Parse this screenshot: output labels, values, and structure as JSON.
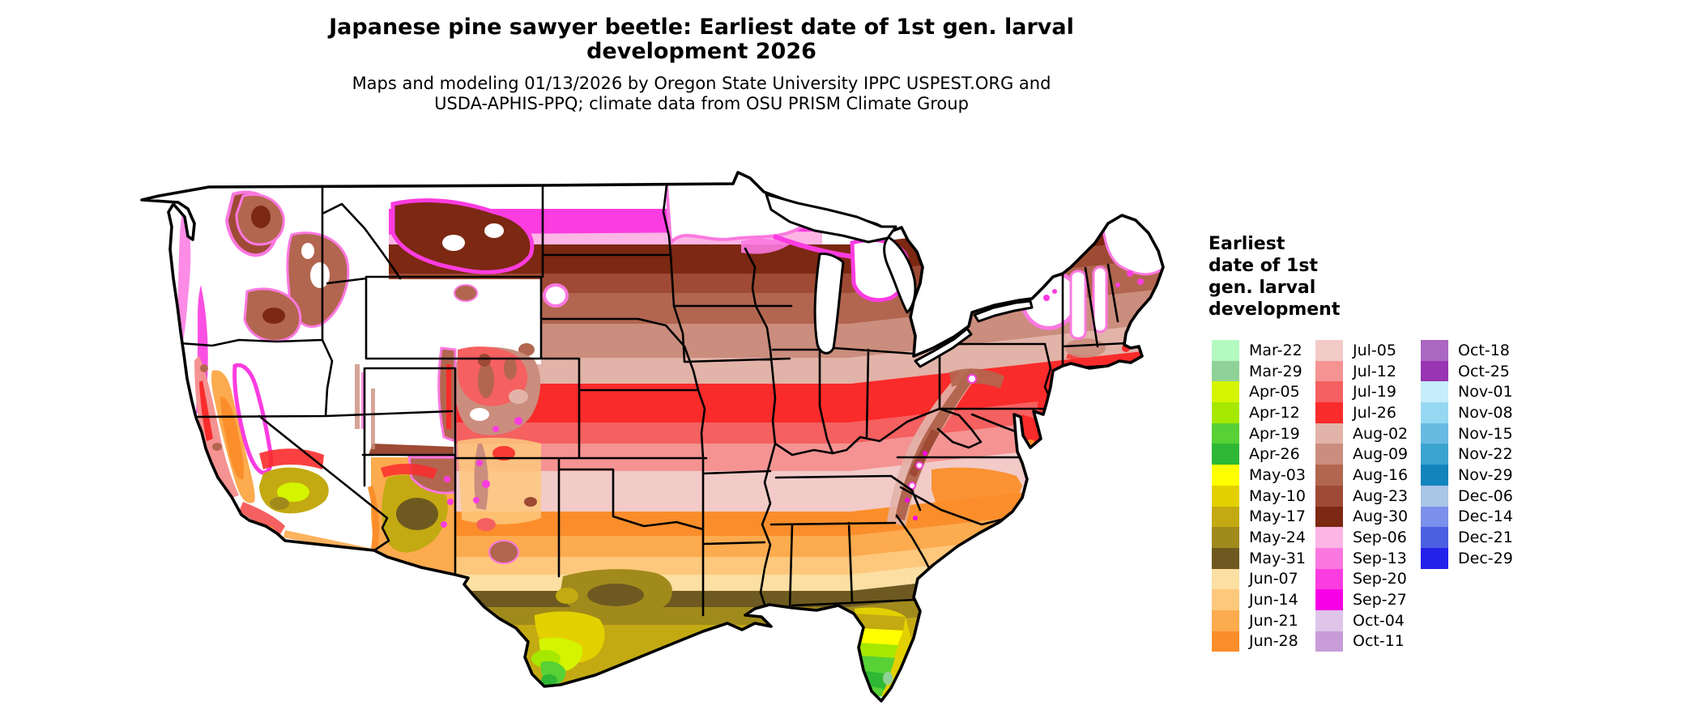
{
  "header": {
    "title_line1": "Japanese pine sawyer beetle: Earliest date of 1st gen. larval",
    "title_line2": "development 2026",
    "subtitle_line1": "Maps and modeling 01/13/2026 by Oregon State University IPPC USPEST.ORG and",
    "subtitle_line2": "USDA-APHIS-PPQ; climate data from OSU PRISM Climate Group"
  },
  "legend": {
    "title_lines": [
      "Earliest",
      "date of 1st",
      "gen. larval",
      "development"
    ],
    "columns": [
      [
        {
          "label": "Mar-22",
          "color": "#b3fac1"
        },
        {
          "label": "Mar-29",
          "color": "#8fd197"
        },
        {
          "label": "Apr-05",
          "color": "#d4f400"
        },
        {
          "label": "Apr-12",
          "color": "#a6e800"
        },
        {
          "label": "Apr-19",
          "color": "#57d135"
        },
        {
          "label": "Apr-26",
          "color": "#2eb835"
        },
        {
          "label": "May-03",
          "color": "#ffff00"
        },
        {
          "label": "May-10",
          "color": "#e3d000"
        },
        {
          "label": "May-17",
          "color": "#c3aa12"
        },
        {
          "label": "May-24",
          "color": "#a18a1c"
        },
        {
          "label": "May-31",
          "color": "#6e5a20"
        },
        {
          "label": "Jun-07",
          "color": "#fcdfa2"
        },
        {
          "label": "Jun-14",
          "color": "#fdc87c"
        },
        {
          "label": "Jun-21",
          "color": "#fcab4e"
        },
        {
          "label": "Jun-28",
          "color": "#fb8e2b"
        }
      ],
      [
        {
          "label": "Jul-05",
          "color": "#f2cbc8"
        },
        {
          "label": "Jul-12",
          "color": "#f59393"
        },
        {
          "label": "Jul-19",
          "color": "#f56060"
        },
        {
          "label": "Jul-26",
          "color": "#fa2b2b"
        },
        {
          "label": "Aug-02",
          "color": "#e2b3a8"
        },
        {
          "label": "Aug-09",
          "color": "#cb8d7d"
        },
        {
          "label": "Aug-16",
          "color": "#b2664f"
        },
        {
          "label": "Aug-23",
          "color": "#9e4a35"
        },
        {
          "label": "Aug-30",
          "color": "#7c2812"
        },
        {
          "label": "Sep-06",
          "color": "#fcb5e5"
        },
        {
          "label": "Sep-13",
          "color": "#fb78e0"
        },
        {
          "label": "Sep-20",
          "color": "#fb3ce0"
        },
        {
          "label": "Sep-27",
          "color": "#f702e6"
        },
        {
          "label": "Oct-04",
          "color": "#dfc5ea"
        },
        {
          "label": "Oct-11",
          "color": "#c79cd8"
        }
      ],
      [
        {
          "label": "Oct-18",
          "color": "#ab67c2"
        },
        {
          "label": "Oct-25",
          "color": "#9934b2"
        },
        {
          "label": "Nov-01",
          "color": "#c5edfc"
        },
        {
          "label": "Nov-08",
          "color": "#96d8f2"
        },
        {
          "label": "Nov-15",
          "color": "#67bbe2"
        },
        {
          "label": "Nov-22",
          "color": "#3ba3d0"
        },
        {
          "label": "Nov-29",
          "color": "#1484bc"
        },
        {
          "label": "Dec-06",
          "color": "#a9c6e6"
        },
        {
          "label": "Dec-14",
          "color": "#7b90ea"
        },
        {
          "label": "Dec-21",
          "color": "#4a5fe2"
        },
        {
          "label": "Dec-29",
          "color": "#2421ea"
        }
      ]
    ]
  },
  "map": {
    "region": "Contiguous United States",
    "no_data_color": "#ffffff",
    "boundary_color": "#000000"
  }
}
